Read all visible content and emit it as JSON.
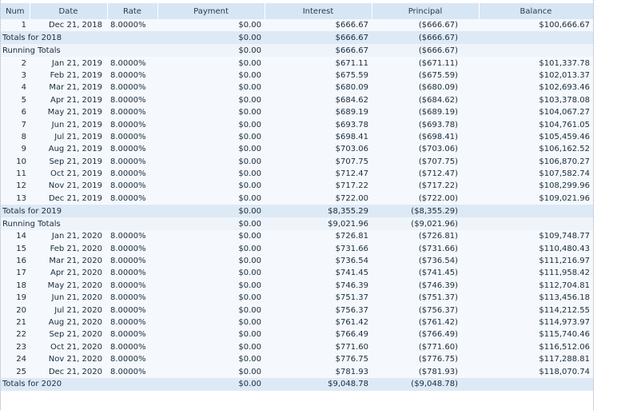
{
  "columns": [
    "Num",
    "Date",
    "Rate",
    "Payment",
    "Interest",
    "Principal",
    "Balance"
  ],
  "rows": [
    {
      "kind": "data",
      "num": "1",
      "date": "Dec 21, 2018",
      "rate": "8.0000%",
      "payment": "$0.00",
      "interest": "$666.67",
      "principal": "($666.67)",
      "balance": "$100,666.67"
    },
    {
      "kind": "total",
      "label": "Totals for 2018",
      "payment": "$0.00",
      "interest": "$666.67",
      "principal": "($666.67)"
    },
    {
      "kind": "running",
      "label": "Running Totals",
      "payment": "$0.00",
      "interest": "$666.67",
      "principal": "($666.67)"
    },
    {
      "kind": "data",
      "num": "2",
      "date": "Jan 21, 2019",
      "rate": "8.0000%",
      "payment": "$0.00",
      "interest": "$671.11",
      "principal": "($671.11)",
      "balance": "$101,337.78"
    },
    {
      "kind": "data",
      "num": "3",
      "date": "Feb 21, 2019",
      "rate": "8.0000%",
      "payment": "$0.00",
      "interest": "$675.59",
      "principal": "($675.59)",
      "balance": "$102,013.37"
    },
    {
      "kind": "data",
      "num": "4",
      "date": "Mar 21, 2019",
      "rate": "8.0000%",
      "payment": "$0.00",
      "interest": "$680.09",
      "principal": "($680.09)",
      "balance": "$102,693.46"
    },
    {
      "kind": "data",
      "num": "5",
      "date": "Apr 21, 2019",
      "rate": "8.0000%",
      "payment": "$0.00",
      "interest": "$684.62",
      "principal": "($684.62)",
      "balance": "$103,378.08"
    },
    {
      "kind": "data",
      "num": "6",
      "date": "May 21, 2019",
      "rate": "8.0000%",
      "payment": "$0.00",
      "interest": "$689.19",
      "principal": "($689.19)",
      "balance": "$104,067.27"
    },
    {
      "kind": "data",
      "num": "7",
      "date": "Jun 21, 2019",
      "rate": "8.0000%",
      "payment": "$0.00",
      "interest": "$693.78",
      "principal": "($693.78)",
      "balance": "$104,761.05"
    },
    {
      "kind": "data",
      "num": "8",
      "date": "Jul 21, 2019",
      "rate": "8.0000%",
      "payment": "$0.00",
      "interest": "$698.41",
      "principal": "($698.41)",
      "balance": "$105,459.46"
    },
    {
      "kind": "data",
      "num": "9",
      "date": "Aug 21, 2019",
      "rate": "8.0000%",
      "payment": "$0.00",
      "interest": "$703.06",
      "principal": "($703.06)",
      "balance": "$106,162.52"
    },
    {
      "kind": "data",
      "num": "10",
      "date": "Sep 21, 2019",
      "rate": "8.0000%",
      "payment": "$0.00",
      "interest": "$707.75",
      "principal": "($707.75)",
      "balance": "$106,870.27"
    },
    {
      "kind": "data",
      "num": "11",
      "date": "Oct 21, 2019",
      "rate": "8.0000%",
      "payment": "$0.00",
      "interest": "$712.47",
      "principal": "($712.47)",
      "balance": "$107,582.74"
    },
    {
      "kind": "data",
      "num": "12",
      "date": "Nov 21, 2019",
      "rate": "8.0000%",
      "payment": "$0.00",
      "interest": "$717.22",
      "principal": "($717.22)",
      "balance": "$108,299.96"
    },
    {
      "kind": "data",
      "num": "13",
      "date": "Dec 21, 2019",
      "rate": "8.0000%",
      "payment": "$0.00",
      "interest": "$722.00",
      "principal": "($722.00)",
      "balance": "$109,021.96"
    },
    {
      "kind": "total",
      "label": "Totals for 2019",
      "payment": "$0.00",
      "interest": "$8,355.29",
      "principal": "($8,355.29)"
    },
    {
      "kind": "running",
      "label": "Running Totals",
      "payment": "$0.00",
      "interest": "$9,021.96",
      "principal": "($9,021.96)"
    },
    {
      "kind": "data",
      "num": "14",
      "date": "Jan 21, 2020",
      "rate": "8.0000%",
      "payment": "$0.00",
      "interest": "$726.81",
      "principal": "($726.81)",
      "balance": "$109,748.77"
    },
    {
      "kind": "data",
      "num": "15",
      "date": "Feb 21, 2020",
      "rate": "8.0000%",
      "payment": "$0.00",
      "interest": "$731.66",
      "principal": "($731.66)",
      "balance": "$110,480.43"
    },
    {
      "kind": "data",
      "num": "16",
      "date": "Mar 21, 2020",
      "rate": "8.0000%",
      "payment": "$0.00",
      "interest": "$736.54",
      "principal": "($736.54)",
      "balance": "$111,216.97"
    },
    {
      "kind": "data",
      "num": "17",
      "date": "Apr 21, 2020",
      "rate": "8.0000%",
      "payment": "$0.00",
      "interest": "$741.45",
      "principal": "($741.45)",
      "balance": "$111,958.42"
    },
    {
      "kind": "data",
      "num": "18",
      "date": "May 21, 2020",
      "rate": "8.0000%",
      "payment": "$0.00",
      "interest": "$746.39",
      "principal": "($746.39)",
      "balance": "$112,704.81"
    },
    {
      "kind": "data",
      "num": "19",
      "date": "Jun 21, 2020",
      "rate": "8.0000%",
      "payment": "$0.00",
      "interest": "$751.37",
      "principal": "($751.37)",
      "balance": "$113,456.18"
    },
    {
      "kind": "data",
      "num": "20",
      "date": "Jul 21, 2020",
      "rate": "8.0000%",
      "payment": "$0.00",
      "interest": "$756.37",
      "principal": "($756.37)",
      "balance": "$114,212.55"
    },
    {
      "kind": "data",
      "num": "21",
      "date": "Aug 21, 2020",
      "rate": "8.0000%",
      "payment": "$0.00",
      "interest": "$761.42",
      "principal": "($761.42)",
      "balance": "$114,973.97"
    },
    {
      "kind": "data",
      "num": "22",
      "date": "Sep 21, 2020",
      "rate": "8.0000%",
      "payment": "$0.00",
      "interest": "$766.49",
      "principal": "($766.49)",
      "balance": "$115,740.46"
    },
    {
      "kind": "data",
      "num": "23",
      "date": "Oct 21, 2020",
      "rate": "8.0000%",
      "payment": "$0.00",
      "interest": "$771.60",
      "principal": "($771.60)",
      "balance": "$116,512.06"
    },
    {
      "kind": "data",
      "num": "24",
      "date": "Nov 21, 2020",
      "rate": "8.0000%",
      "payment": "$0.00",
      "interest": "$776.75",
      "principal": "($776.75)",
      "balance": "$117,288.81"
    },
    {
      "kind": "data",
      "num": "25",
      "date": "Dec 21, 2020",
      "rate": "8.0000%",
      "payment": "$0.00",
      "interest": "$781.93",
      "principal": "($781.93)",
      "balance": "$118,070.74"
    },
    {
      "kind": "total",
      "label": "Totals for 2020",
      "payment": "$0.00",
      "interest": "$9,048.78",
      "principal": "($9,048.78)"
    }
  ]
}
